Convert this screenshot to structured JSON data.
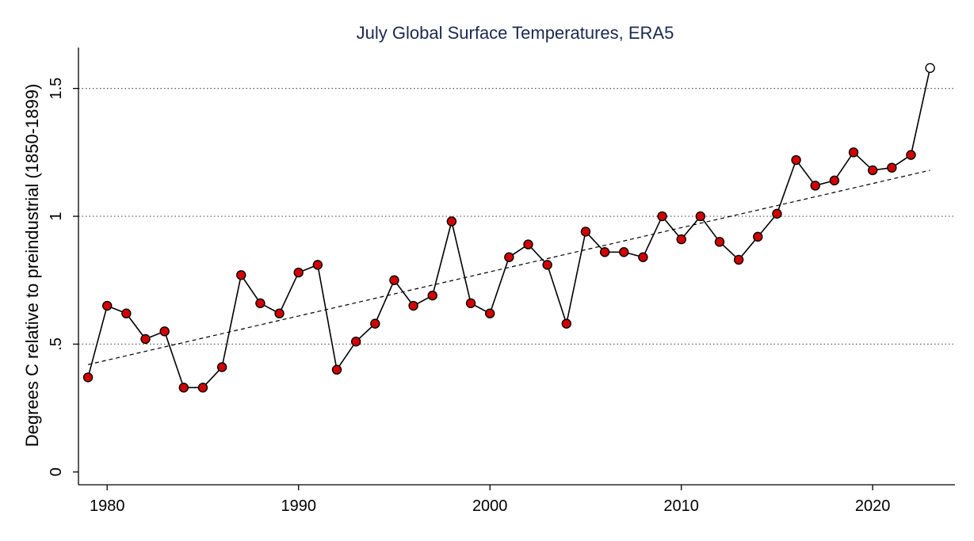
{
  "chart_data": {
    "type": "line",
    "title": "July Global Surface Temperatures, ERA5",
    "xlabel": "",
    "ylabel": "Degrees C relative to preindustrial (1850-1899)",
    "xlim": [
      1978.5,
      2024.3
    ],
    "ylim": [
      -0.05,
      1.66
    ],
    "x_ticks": [
      1980,
      1990,
      2000,
      2010,
      2020
    ],
    "x_tick_labels": [
      "1980",
      "1990",
      "2000",
      "2010",
      "2020"
    ],
    "y_ticks": [
      0,
      0.5,
      1,
      1.5
    ],
    "y_tick_labels": [
      "0",
      ".5",
      "1",
      "1.5"
    ],
    "grid": "horizontal dotted at 0.5, 1, 1.5",
    "colors": {
      "marker_fill": "#d40000",
      "line": "#000000",
      "title": "#1a2a4f",
      "highlight_marker_fill": "#ffffff"
    },
    "series": [
      {
        "x": [
          1979,
          1980,
          1981,
          1982,
          1983,
          1984,
          1985,
          1986,
          1987,
          1988,
          1989,
          1990,
          1991,
          1992,
          1993,
          1994,
          1995,
          1996,
          1997,
          1998,
          1999,
          2000,
          2001,
          2002,
          2003,
          2004,
          2005,
          2006,
          2007,
          2008,
          2009,
          2010,
          2011,
          2012,
          2013,
          2014,
          2015,
          2016,
          2017,
          2018,
          2019,
          2020,
          2021,
          2022,
          2023
        ],
        "values": [
          0.37,
          0.65,
          0.62,
          0.52,
          0.55,
          0.33,
          0.33,
          0.41,
          0.77,
          0.66,
          0.62,
          0.78,
          0.81,
          0.4,
          0.51,
          0.58,
          0.75,
          0.65,
          0.69,
          0.98,
          0.66,
          0.62,
          0.84,
          0.89,
          0.81,
          0.58,
          0.94,
          0.86,
          0.86,
          0.84,
          1.0,
          0.91,
          1.0,
          0.9,
          0.83,
          0.92,
          1.01,
          1.22,
          1.12,
          1.14,
          1.25,
          1.18,
          1.19,
          1.24,
          1.58
        ],
        "highlight_last": true
      }
    ],
    "trend": {
      "style": "dashed",
      "x": [
        1979,
        2023
      ],
      "values": [
        0.42,
        1.18
      ]
    }
  }
}
